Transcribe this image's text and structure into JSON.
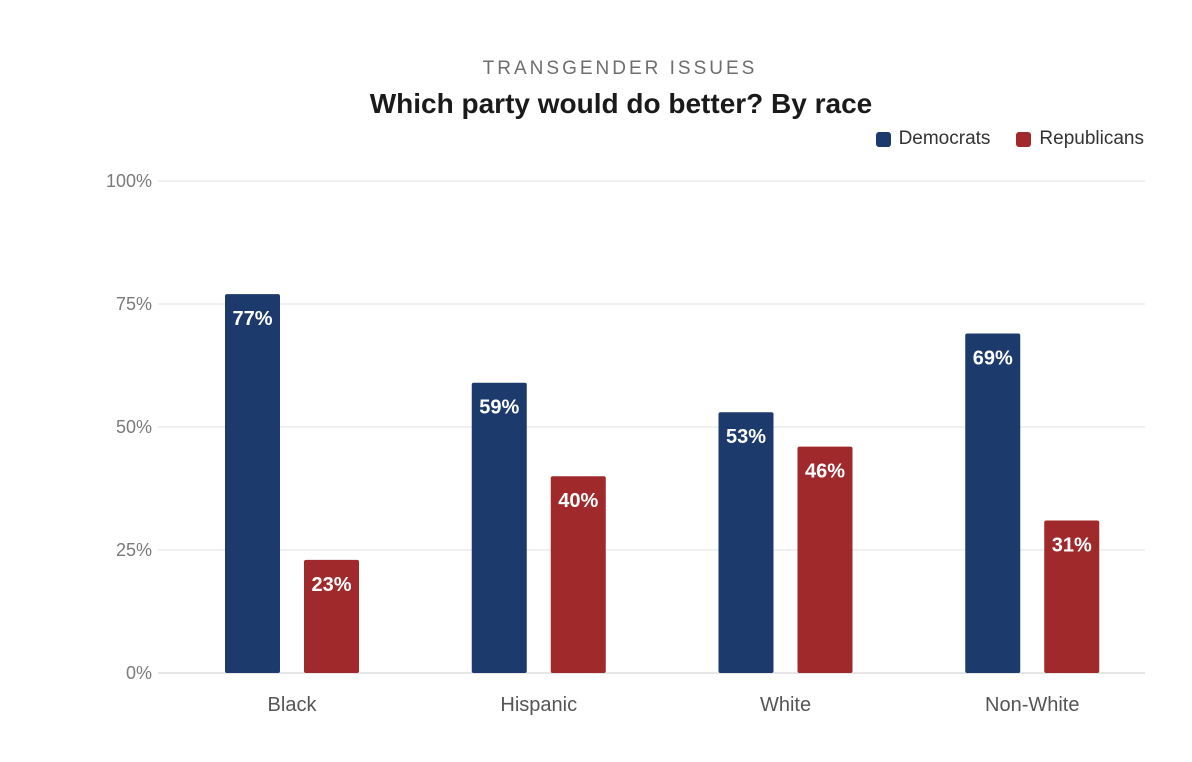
{
  "chart_data": {
    "type": "bar",
    "subtitle": "TRANSGENDER ISSUES",
    "title": "Which party would do better? By race",
    "categories": [
      "Black",
      "Hispanic",
      "White",
      "Non-White"
    ],
    "series": [
      {
        "name": "Democrats",
        "color": "#1c3a6b",
        "values": [
          77,
          59,
          53,
          69
        ]
      },
      {
        "name": "Republicans",
        "color": "#a0292c",
        "values": [
          23,
          40,
          46,
          31
        ]
      }
    ],
    "ylim": [
      0,
      100
    ],
    "yticks": [
      0,
      25,
      50,
      75,
      100
    ],
    "ytick_labels": [
      "0%",
      "25%",
      "50%",
      "75%",
      "100%"
    ],
    "value_suffix": "%",
    "legend_position": "top-right",
    "grid": true,
    "xlabel": "",
    "ylabel": ""
  }
}
